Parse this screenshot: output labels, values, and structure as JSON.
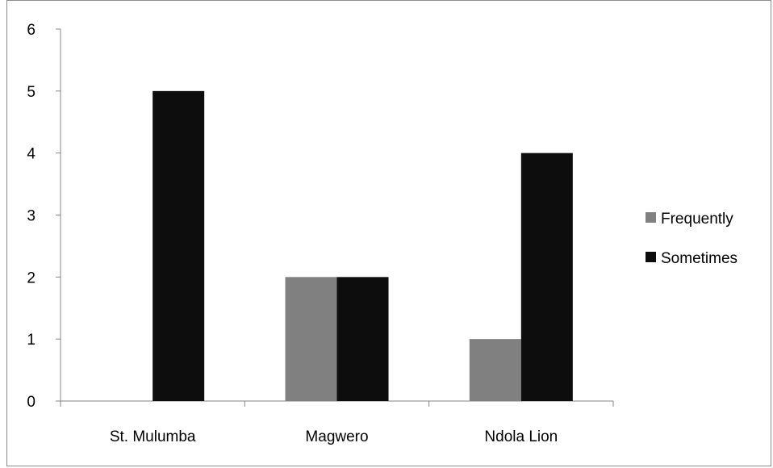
{
  "chart_data": {
    "type": "bar",
    "categories": [
      "St. Mulumba",
      "Magwero",
      "Ndola Lion"
    ],
    "series": [
      {
        "name": "Frequently",
        "color": "#808080",
        "values": [
          0,
          2,
          1
        ]
      },
      {
        "name": "Sometimes",
        "color": "#0d0d0d",
        "values": [
          5,
          2,
          4
        ]
      }
    ],
    "ylim": [
      0,
      6
    ],
    "yticks": [
      0,
      1,
      2,
      3,
      4,
      5,
      6
    ],
    "grid": false,
    "legend": "right"
  }
}
